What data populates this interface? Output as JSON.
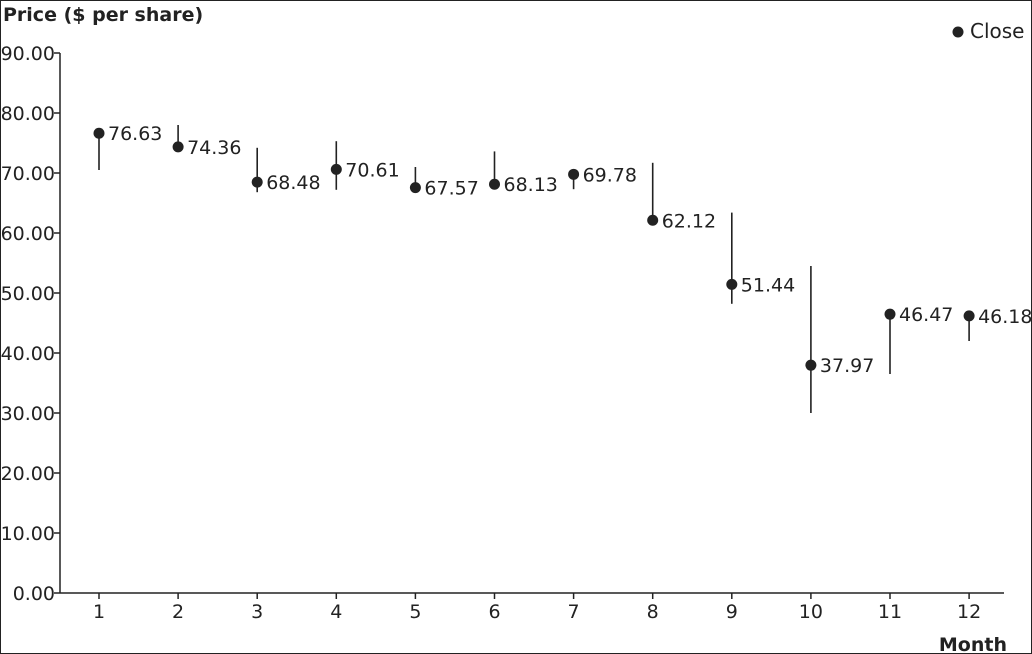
{
  "chart_data": {
    "type": "scatter",
    "title": "Price ($ per share)",
    "xlabel": "Month",
    "ylabel": "Price ($ per share)",
    "ylim": [
      0,
      90
    ],
    "y_ticks": [
      "0.00",
      "10.00",
      "20.00",
      "30.00",
      "40.00",
      "50.00",
      "60.00",
      "70.00",
      "80.00",
      "90.00"
    ],
    "categories": [
      "1",
      "2",
      "3",
      "4",
      "5",
      "6",
      "7",
      "8",
      "9",
      "10",
      "11",
      "12"
    ],
    "grid": false,
    "legend_position": "top-right",
    "series": [
      {
        "name": "Close",
        "values": [
          76.63,
          74.36,
          68.48,
          70.61,
          67.57,
          68.13,
          69.78,
          62.12,
          51.44,
          37.97,
          46.47,
          46.18
        ],
        "labels": [
          "76.63",
          "74.36",
          "68.48",
          "70.61",
          "67.57",
          "68.13",
          "69.78",
          "62.12",
          "51.44",
          "37.97",
          "46.47",
          "46.18"
        ]
      }
    ],
    "ranges": [
      {
        "high": 76.6,
        "low": 70.5
      },
      {
        "high": 78.0,
        "low": 74.4
      },
      {
        "high": 74.2,
        "low": 66.8
      },
      {
        "high": 75.3,
        "low": 67.2
      },
      {
        "high": 71.0,
        "low": 67.6
      },
      {
        "high": 73.6,
        "low": 68.1
      },
      {
        "high": 69.8,
        "low": 67.3
      },
      {
        "high": 71.7,
        "low": 62.1
      },
      {
        "high": 63.4,
        "low": 48.2
      },
      {
        "high": 54.5,
        "low": 30.0
      },
      {
        "high": 46.5,
        "low": 36.5
      },
      {
        "high": 46.2,
        "low": 42.0
      }
    ],
    "colors": {
      "marker": "#222222",
      "axis": "#222222"
    }
  }
}
